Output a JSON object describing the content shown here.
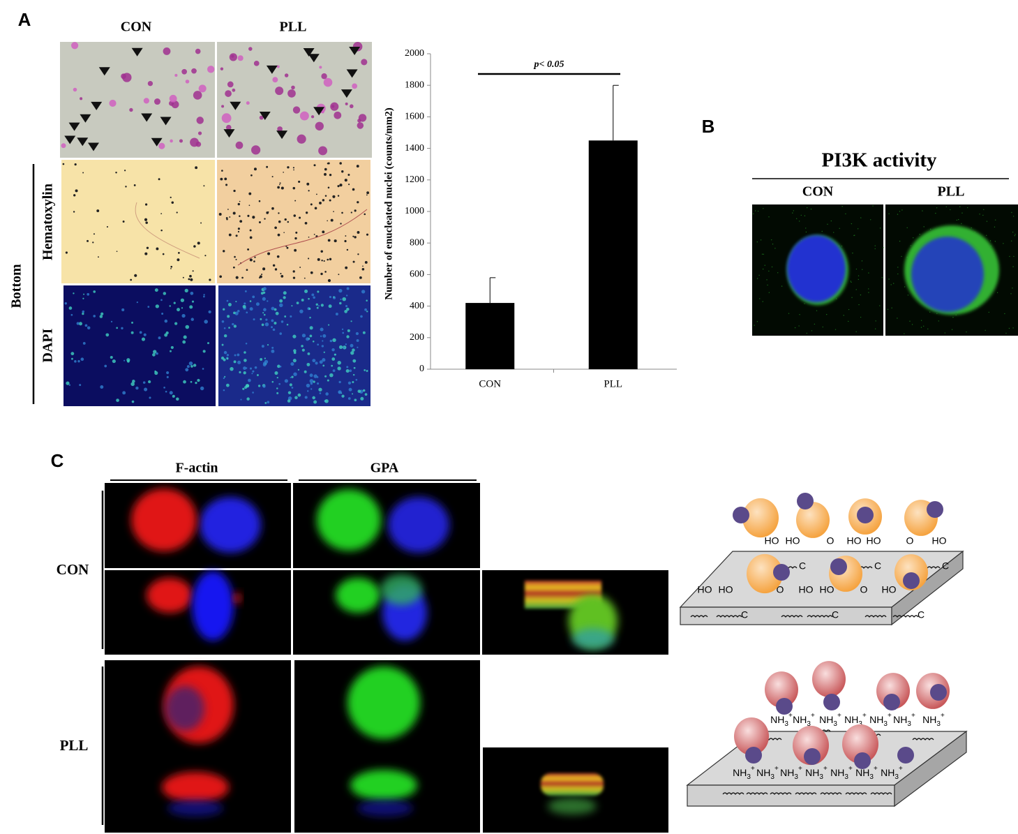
{
  "panels": {
    "a": "A",
    "b": "B",
    "c": "C"
  },
  "panel_a": {
    "columns": [
      "CON",
      "PLL"
    ],
    "rows": [
      "Hematoxylin",
      "DAPI"
    ],
    "group": "Bottom"
  },
  "chart_data": {
    "type": "bar",
    "categories": [
      "CON",
      "PLL"
    ],
    "values": [
      420,
      1450
    ],
    "errors": [
      160,
      350
    ],
    "color": "#000000",
    "ylim": [
      0,
      2000
    ],
    "yticks": [
      0,
      200,
      400,
      600,
      800,
      1000,
      1200,
      1400,
      1600,
      1800,
      2000
    ],
    "y_label": "Number of enucleated nuclei (counts/mm2)",
    "annotation": "p< 0.05"
  },
  "panel_b": {
    "title": "PI3K activity",
    "columns": [
      "CON",
      "PLL"
    ]
  },
  "panel_c": {
    "columns": [
      "F-actin",
      "GPA"
    ],
    "rows": [
      "CON",
      "PLL"
    ]
  },
  "schematic": {
    "hydroxyl": "HO",
    "carbon": "C",
    "oxygen": "O",
    "amine": "NH",
    "amine_sub": "3",
    "amine_sup": "+"
  }
}
